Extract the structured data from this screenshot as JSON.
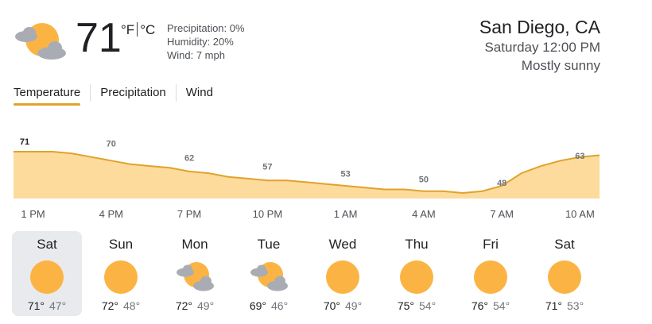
{
  "current": {
    "temperature": "71",
    "unit_f": "°F",
    "unit_c": "°C",
    "icon": "partly-cloudy-icon",
    "precipitation": "Precipitation: 0%",
    "humidity": "Humidity: 20%",
    "wind": "Wind: 7 mph"
  },
  "location": {
    "city": "San Diego, CA",
    "datetime": "Saturday 12:00 PM",
    "condition": "Mostly sunny"
  },
  "tabs": [
    {
      "label": "Temperature",
      "active": true
    },
    {
      "label": "Precipitation",
      "active": false
    },
    {
      "label": "Wind",
      "active": false
    }
  ],
  "colors": {
    "accent": "#e1a22c",
    "area_fill": "#fcdb9c",
    "sun": "#fbb443",
    "cloud": "#a9adb3",
    "selected_bg": "#e8eaed"
  },
  "chart_data": {
    "type": "area",
    "x_labels": [
      "1 PM",
      "4 PM",
      "7 PM",
      "10 PM",
      "1 AM",
      "4 AM",
      "7 AM",
      "10 AM"
    ],
    "labeled_values": [
      71,
      70,
      62,
      57,
      53,
      50,
      48,
      63
    ],
    "hourly_values": [
      71,
      71,
      71,
      70,
      68,
      66,
      64,
      63,
      62,
      60,
      59,
      57,
      56,
      55,
      55,
      54,
      53,
      52,
      51,
      50,
      50,
      49,
      49,
      48,
      49,
      52,
      59,
      63,
      66,
      68,
      69
    ]
  },
  "forecast": [
    {
      "day": "Sat",
      "icon": "sun-icon",
      "high": "71°",
      "low": "47°",
      "selected": true
    },
    {
      "day": "Sun",
      "icon": "sun-icon",
      "high": "72°",
      "low": "48°",
      "selected": false
    },
    {
      "day": "Mon",
      "icon": "partly-cloudy-icon",
      "high": "72°",
      "low": "49°",
      "selected": false
    },
    {
      "day": "Tue",
      "icon": "partly-cloudy-icon",
      "high": "69°",
      "low": "46°",
      "selected": false
    },
    {
      "day": "Wed",
      "icon": "sun-icon",
      "high": "70°",
      "low": "49°",
      "selected": false
    },
    {
      "day": "Thu",
      "icon": "sun-icon",
      "high": "75°",
      "low": "54°",
      "selected": false
    },
    {
      "day": "Fri",
      "icon": "sun-icon",
      "high": "76°",
      "low": "54°",
      "selected": false
    },
    {
      "day": "Sat",
      "icon": "sun-icon",
      "high": "71°",
      "low": "53°",
      "selected": false
    }
  ]
}
